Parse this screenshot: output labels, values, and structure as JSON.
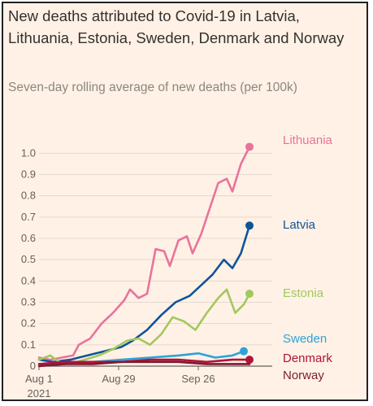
{
  "chart_data": {
    "type": "line",
    "title": "New deaths attributed to Covid-19 in Latvia, Lithuania, Estonia, Sweden, Denmark and Norway",
    "subtitle": "Seven-day rolling average of new deaths (per 100k)",
    "xlabel": "",
    "ylabel": "",
    "ylim": [
      0,
      1.07
    ],
    "xlim": [
      "2021-08-01",
      "2021-10-22"
    ],
    "y_ticks": [
      0,
      0.1,
      0.2,
      0.3,
      0.4,
      0.5,
      0.6,
      0.7,
      0.8,
      0.9,
      1.0
    ],
    "y_tick_labels": [
      "0",
      "0.1",
      "0.2",
      "0.3",
      "0.4",
      "0.5",
      "0.6",
      "0.7",
      "0.8",
      "0.9",
      "1.0"
    ],
    "x_ticks": [
      "2021-08-01",
      "2021-08-29",
      "2021-09-26"
    ],
    "x_tick_labels": [
      {
        "line1": "Aug 1",
        "line2": "2021"
      },
      {
        "line1": "Aug 29",
        "line2": ""
      },
      {
        "line1": "Sep 26",
        "line2": ""
      }
    ],
    "grid": "horizontal",
    "legend": "direct labels at line ends",
    "series": [
      {
        "name": "Lithuania",
        "color": "#e8739b",
        "points": [
          [
            "2021-08-01",
            0.04
          ],
          [
            "2021-08-05",
            0.03
          ],
          [
            "2021-08-09",
            0.04
          ],
          [
            "2021-08-13",
            0.05
          ],
          [
            "2021-08-15",
            0.1
          ],
          [
            "2021-08-19",
            0.13
          ],
          [
            "2021-08-23",
            0.2
          ],
          [
            "2021-08-27",
            0.25
          ],
          [
            "2021-08-31",
            0.31
          ],
          [
            "2021-09-02",
            0.36
          ],
          [
            "2021-09-05",
            0.32
          ],
          [
            "2021-09-08",
            0.34
          ],
          [
            "2021-09-11",
            0.55
          ],
          [
            "2021-09-14",
            0.54
          ],
          [
            "2021-09-16",
            0.47
          ],
          [
            "2021-09-19",
            0.59
          ],
          [
            "2021-09-22",
            0.61
          ],
          [
            "2021-09-24",
            0.53
          ],
          [
            "2021-09-27",
            0.62
          ],
          [
            "2021-09-30",
            0.74
          ],
          [
            "2021-10-03",
            0.86
          ],
          [
            "2021-10-06",
            0.88
          ],
          [
            "2021-10-08",
            0.82
          ],
          [
            "2021-10-11",
            0.95
          ],
          [
            "2021-10-14",
            1.03
          ]
        ]
      },
      {
        "name": "Latvia",
        "color": "#0f5499",
        "points": [
          [
            "2021-08-01",
            0.03
          ],
          [
            "2021-08-06",
            0.02
          ],
          [
            "2021-08-12",
            0.03
          ],
          [
            "2021-08-18",
            0.05
          ],
          [
            "2021-08-24",
            0.07
          ],
          [
            "2021-08-30",
            0.09
          ],
          [
            "2021-09-03",
            0.12
          ],
          [
            "2021-09-08",
            0.17
          ],
          [
            "2021-09-13",
            0.24
          ],
          [
            "2021-09-18",
            0.3
          ],
          [
            "2021-09-23",
            0.33
          ],
          [
            "2021-09-27",
            0.38
          ],
          [
            "2021-10-01",
            0.43
          ],
          [
            "2021-10-05",
            0.5
          ],
          [
            "2021-10-08",
            0.46
          ],
          [
            "2021-10-11",
            0.53
          ],
          [
            "2021-10-14",
            0.66
          ]
        ]
      },
      {
        "name": "Estonia",
        "color": "#a2c85e",
        "points": [
          [
            "2021-08-01",
            0.03
          ],
          [
            "2021-08-05",
            0.05
          ],
          [
            "2021-08-08",
            0.02
          ],
          [
            "2021-08-12",
            0.01
          ],
          [
            "2021-08-17",
            0.03
          ],
          [
            "2021-08-22",
            0.05
          ],
          [
            "2021-08-27",
            0.08
          ],
          [
            "2021-09-01",
            0.12
          ],
          [
            "2021-09-05",
            0.13
          ],
          [
            "2021-09-09",
            0.1
          ],
          [
            "2021-09-13",
            0.15
          ],
          [
            "2021-09-17",
            0.23
          ],
          [
            "2021-09-21",
            0.21
          ],
          [
            "2021-09-25",
            0.17
          ],
          [
            "2021-09-29",
            0.25
          ],
          [
            "2021-10-03",
            0.32
          ],
          [
            "2021-10-06",
            0.36
          ],
          [
            "2021-10-09",
            0.25
          ],
          [
            "2021-10-12",
            0.29
          ],
          [
            "2021-10-14",
            0.34
          ]
        ]
      },
      {
        "name": "Sweden",
        "color": "#2ba3da",
        "points": [
          [
            "2021-08-01",
            0.01
          ],
          [
            "2021-08-10",
            0.01
          ],
          [
            "2021-08-20",
            0.02
          ],
          [
            "2021-08-30",
            0.03
          ],
          [
            "2021-09-09",
            0.04
          ],
          [
            "2021-09-19",
            0.05
          ],
          [
            "2021-09-26",
            0.06
          ],
          [
            "2021-10-02",
            0.04
          ],
          [
            "2021-10-08",
            0.05
          ],
          [
            "2021-10-12",
            0.07
          ]
        ]
      },
      {
        "name": "Denmark",
        "color": "#b1123b",
        "points": [
          [
            "2021-08-01",
            0.01
          ],
          [
            "2021-08-10",
            0.02
          ],
          [
            "2021-08-20",
            0.02
          ],
          [
            "2021-08-30",
            0.02
          ],
          [
            "2021-09-09",
            0.03
          ],
          [
            "2021-09-19",
            0.03
          ],
          [
            "2021-09-29",
            0.02
          ],
          [
            "2021-10-08",
            0.03
          ],
          [
            "2021-10-14",
            0.03
          ]
        ]
      },
      {
        "name": "Norway",
        "color": "#7d1a31",
        "points": [
          [
            "2021-08-01",
            0.0
          ],
          [
            "2021-08-10",
            0.01
          ],
          [
            "2021-08-20",
            0.01
          ],
          [
            "2021-08-30",
            0.02
          ],
          [
            "2021-09-09",
            0.02
          ],
          [
            "2021-09-19",
            0.02
          ],
          [
            "2021-09-29",
            0.01
          ],
          [
            "2021-10-08",
            0.01
          ],
          [
            "2021-10-14",
            0.01
          ]
        ]
      }
    ]
  }
}
